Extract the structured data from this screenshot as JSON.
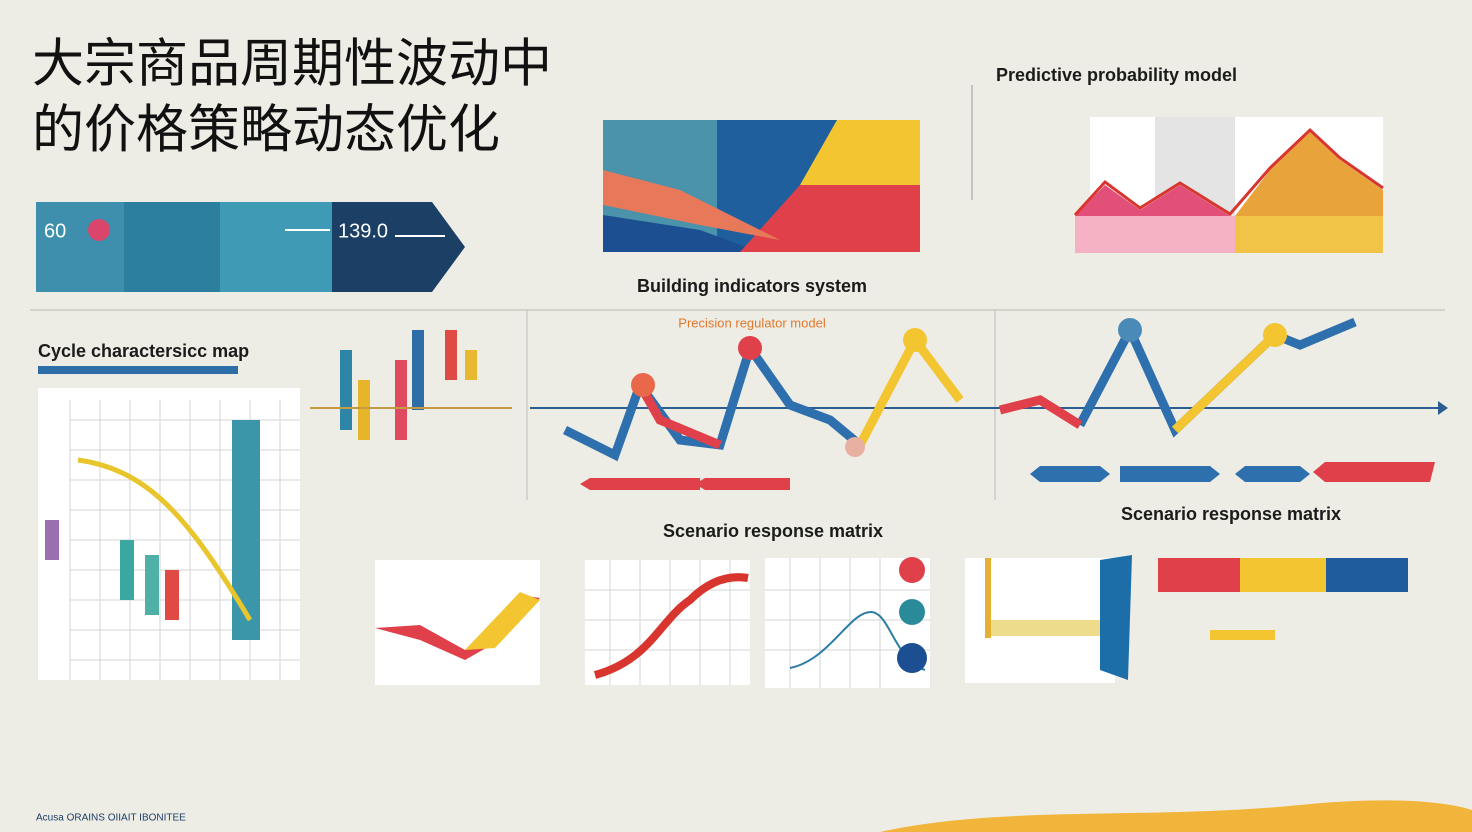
{
  "header": {
    "title_lines": [
      "大宗商品周期性波动中",
      "的价格策略动态优化"
    ]
  },
  "banner": {
    "values": [
      "60",
      "139.0"
    ]
  },
  "panels": {
    "indicators": {
      "title": "Building indicators system"
    },
    "predictive": {
      "title": "Predictive probability model"
    },
    "cycle": {
      "title": "Cycle charactersicc map"
    },
    "regulator": {
      "title": "Precision regulator model"
    },
    "scenario_left": {
      "title": "Scenario response matrix"
    },
    "scenario_right": {
      "title": "Scenario response matrix"
    }
  },
  "footer": {
    "left": "Acusa ORAINS OIIAIT IBONITEE"
  }
}
